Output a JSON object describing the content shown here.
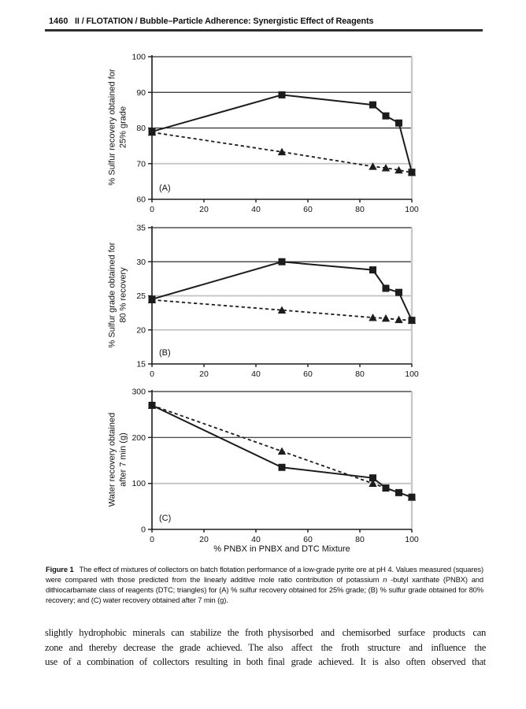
{
  "page": {
    "number": "1460",
    "header_title": "II / FLOTATION / Bubble–Particle Adherence: Synergistic Effect of Reagents"
  },
  "colors": {
    "axis": "#1c1c1c",
    "grid_strong": "#2f2f2f",
    "grid_weak": "#c2c2c2",
    "right_border": "#c9c9c9"
  },
  "figure": {
    "caption_label": "Figure 1",
    "caption_part1": "The effect of mixtures of collectors on batch flotation performance of a low-grade pyrite ore at pH 4. Values measured (squares) were compared with those predicted from the linearly additive mole ratio contribution of potassium ",
    "caption_italic": "n",
    "caption_part2": " -butyl xanthate (PNBX) and dithiocarbamate class of reagents (DTC; triangles) for (A) % sulfur recovery obtained for 25% grade; (B) % sulfur grade obtained for 80% recovery; and (C) water recovery obtained after 7 min (g)."
  },
  "body": {
    "left_column_lines": [
      "slightly hydrophobic minerals can stabilize the froth",
      "zone and thereby decrease the grade achieved. The",
      "use of a combination of collectors resulting in both"
    ],
    "right_column_lines": [
      "physisorbed and chemisorbed surface products can",
      "also affect the froth structure and influence the",
      "final grade achieved. It is also often observed that"
    ]
  },
  "chart_data": [
    {
      "type": "line",
      "panel_label": "(A)",
      "ylabel_lines": [
        "% Sulfur recovery obtained for",
        "25% grade"
      ],
      "ylim": [
        60,
        100
      ],
      "yticks": [
        60,
        70,
        80,
        90,
        100
      ],
      "xlim": [
        0,
        100
      ],
      "xticks": [
        0,
        20,
        40,
        60,
        80,
        100
      ],
      "grid": true,
      "legend": "none",
      "gridlines": [
        {
          "y": 70,
          "strong": false
        },
        {
          "y": 80,
          "strong": true
        },
        {
          "y": 90,
          "strong": true
        },
        {
          "y": 100,
          "strong": true
        }
      ],
      "series": [
        {
          "name": "predicted from linearly additive mole ratio (triangles)",
          "marker": "triangle",
          "dash": true,
          "x": [
            0,
            50,
            85,
            90,
            95,
            100
          ],
          "y": [
            78.8,
            73.3,
            69.2,
            68.8,
            68.2,
            67.5
          ]
        },
        {
          "name": "measured (squares)",
          "marker": "square",
          "dash": false,
          "x": [
            0,
            50,
            85,
            90,
            95,
            100
          ],
          "y": [
            79.0,
            89.3,
            86.5,
            83.4,
            81.4,
            67.6
          ]
        }
      ]
    },
    {
      "type": "line",
      "panel_label": "(B)",
      "ylabel_lines": [
        "% Sulfur grade obtained for",
        "80 % recovery"
      ],
      "ylim": [
        15,
        35
      ],
      "yticks": [
        15,
        20,
        25,
        30,
        35
      ],
      "xlim": [
        0,
        100
      ],
      "xticks": [
        0,
        20,
        40,
        60,
        80,
        100
      ],
      "grid": true,
      "legend": "none",
      "gridlines": [
        {
          "y": 20,
          "strong": false
        },
        {
          "y": 25,
          "strong": false
        },
        {
          "y": 30,
          "strong": true
        },
        {
          "y": 35,
          "strong": true
        }
      ],
      "series": [
        {
          "name": "predicted from linearly additive mole ratio (triangles)",
          "marker": "triangle",
          "dash": true,
          "x": [
            0,
            50,
            85,
            90,
            95,
            100
          ],
          "y": [
            24.4,
            22.9,
            21.8,
            21.7,
            21.5,
            21.4
          ]
        },
        {
          "name": "measured (squares)",
          "marker": "square",
          "dash": false,
          "x": [
            0,
            50,
            85,
            90,
            95,
            100
          ],
          "y": [
            24.5,
            30.0,
            28.8,
            26.1,
            25.5,
            21.4
          ]
        }
      ]
    },
    {
      "type": "line",
      "panel_label": "(C)",
      "ylabel_lines": [
        "Water recovery obtained",
        "after 7 min (g)"
      ],
      "xlabel": "% PNBX in PNBX and DTC Mixture",
      "ylim": [
        0,
        300
      ],
      "yticks": [
        0,
        100,
        200,
        300
      ],
      "xlim": [
        0,
        100
      ],
      "xticks": [
        0,
        20,
        40,
        60,
        80,
        100
      ],
      "grid": true,
      "legend": "none",
      "gridlines": [
        {
          "y": 100,
          "strong": false
        },
        {
          "y": 200,
          "strong": true
        },
        {
          "y": 300,
          "strong": true
        }
      ],
      "series": [
        {
          "name": "predicted from linearly additive mole ratio (triangles)",
          "marker": "triangle",
          "dash": true,
          "x": [
            0,
            50,
            85,
            100
          ],
          "y": [
            270,
            170,
            100,
            70
          ]
        },
        {
          "name": "measured (squares)",
          "marker": "square",
          "dash": false,
          "x": [
            0,
            50,
            85,
            90,
            95,
            100
          ],
          "y": [
            270,
            135,
            112,
            90,
            80,
            70
          ]
        }
      ]
    }
  ]
}
